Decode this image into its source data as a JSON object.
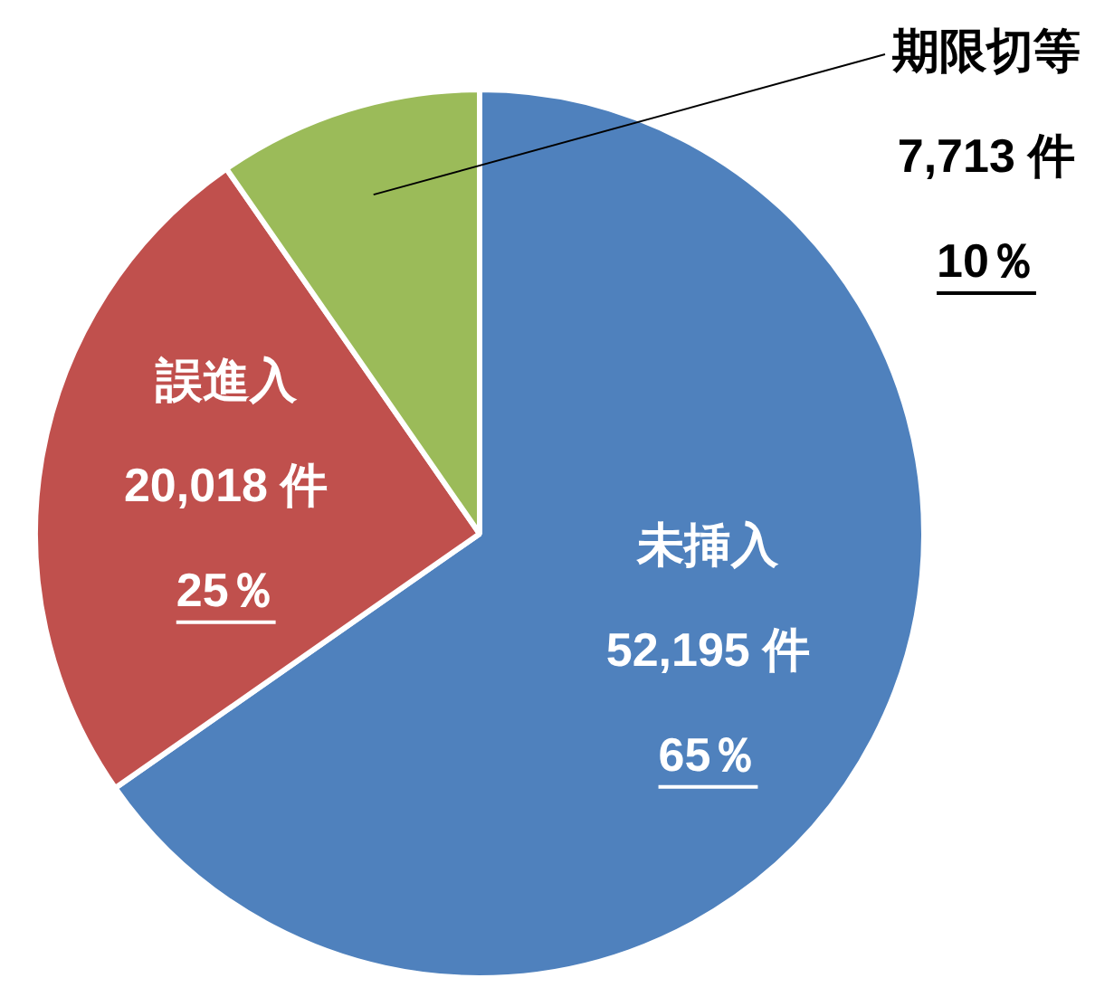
{
  "chart_data": {
    "type": "pie",
    "categories": [
      "未挿入",
      "誤進入",
      "期限切等"
    ],
    "values": [
      52195,
      20018,
      7713
    ],
    "colors": [
      "#4f81bd",
      "#c0504d",
      "#9bbb59"
    ],
    "value_labels": [
      "52,195 件",
      "20,018 件",
      "7,713 件"
    ],
    "annotations": [
      {
        "text": "65％",
        "x": "未挿入"
      },
      {
        "text": "25％",
        "x": "誤進入"
      },
      {
        "text": "10％",
        "x": "期限切等"
      }
    ],
    "legend": false
  }
}
